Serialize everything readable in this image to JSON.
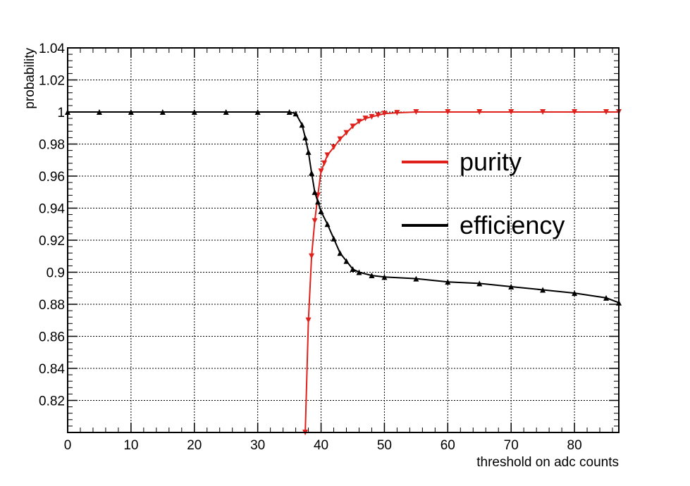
{
  "chart_data": {
    "type": "line",
    "xlabel": "threshold on adc counts",
    "ylabel": "probability",
    "xlim": [
      0,
      87
    ],
    "ylim": [
      0.8,
      1.04
    ],
    "xticks": [
      0,
      10,
      20,
      30,
      40,
      50,
      60,
      70,
      80
    ],
    "xtick_labels": [
      "0",
      "10",
      "20",
      "30",
      "40",
      "50",
      "60",
      "70",
      "80"
    ],
    "yticks": [
      0.82,
      0.84,
      0.86,
      0.88,
      0.9,
      0.92,
      0.94,
      0.96,
      0.98,
      1,
      1.02,
      1.04
    ],
    "ytick_labels": [
      "0.82",
      "0.84",
      "0.86",
      "0.88",
      "0.9",
      "0.92",
      "0.94",
      "0.96",
      "0.98",
      "1",
      "1.02",
      "1.04"
    ],
    "grid": true,
    "legend_position": "right-center",
    "series": [
      {
        "name": "purity",
        "color": "#e0201b",
        "marker": "down-triangle",
        "x": [
          37.5,
          38,
          38.5,
          39,
          39.5,
          40,
          40.5,
          41,
          42,
          43,
          44,
          45,
          46,
          47,
          48,
          49,
          50,
          52,
          55,
          60,
          65,
          70,
          75,
          80,
          85,
          87
        ],
        "y": [
          0.8,
          0.87,
          0.91,
          0.932,
          0.948,
          0.963,
          0.968,
          0.973,
          0.978,
          0.983,
          0.987,
          0.991,
          0.994,
          0.996,
          0.997,
          0.998,
          0.999,
          0.9995,
          1.0,
          1.0,
          1.0,
          1.0,
          1.0,
          1.0,
          1.0,
          1.0
        ]
      },
      {
        "name": "efficiency",
        "color": "#000000",
        "marker": "up-triangle",
        "x": [
          0,
          5,
          10,
          15,
          20,
          25,
          30,
          35,
          36,
          37,
          37.5,
          38,
          38.5,
          39,
          39.5,
          40,
          41,
          42,
          43,
          44,
          45,
          46,
          48,
          50,
          55,
          60,
          65,
          70,
          75,
          80,
          85,
          87
        ],
        "y": [
          1.0,
          1.0,
          1.0,
          1.0,
          1.0,
          1.0,
          1.0,
          1.0,
          0.999,
          0.992,
          0.984,
          0.975,
          0.962,
          0.95,
          0.944,
          0.938,
          0.93,
          0.921,
          0.912,
          0.907,
          0.902,
          0.9,
          0.898,
          0.897,
          0.896,
          0.894,
          0.893,
          0.891,
          0.889,
          0.887,
          0.884,
          0.881
        ]
      }
    ]
  }
}
